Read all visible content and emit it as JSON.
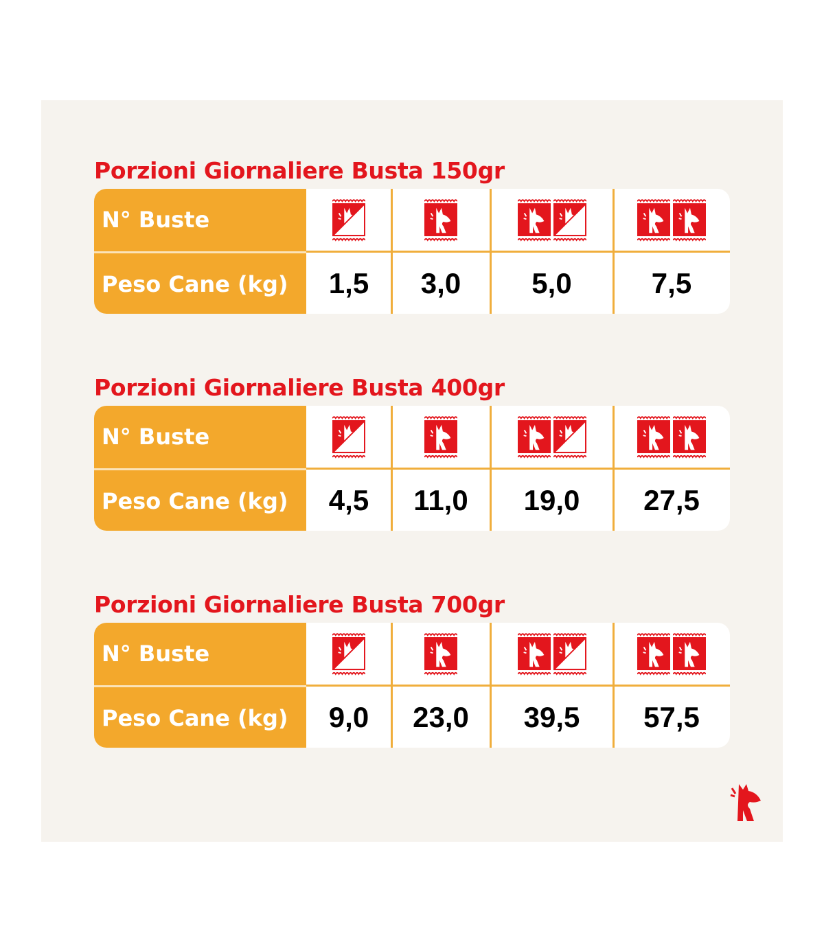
{
  "colors": {
    "title": "#e3161d",
    "label_bg": "#f3a82c",
    "divider": "#f0ae3c",
    "background": "#f6f3ee",
    "sachet": "#e3161d"
  },
  "row_labels": {
    "sachets": "N° Buste",
    "weight": "Peso Cane (kg)"
  },
  "sachet_icon": "dog-sachet-icon",
  "tables": [
    {
      "title": "Porzioni Giornaliere Busta 150gr",
      "sachets": [
        0.5,
        1,
        1.5,
        2
      ],
      "weights": [
        "1,5",
        "3,0",
        "5,0",
        "7,5"
      ]
    },
    {
      "title": "Porzioni Giornaliere Busta 400gr",
      "sachets": [
        0.5,
        1,
        1.5,
        2
      ],
      "weights": [
        "4,5",
        "11,0",
        "19,0",
        "27,5"
      ]
    },
    {
      "title": "Porzioni Giornaliere Busta 700gr",
      "sachets": [
        0.5,
        1,
        1.5,
        2
      ],
      "weights": [
        "9,0",
        "23,0",
        "39,5",
        "57,5"
      ]
    }
  ],
  "logo": "dog-logo-icon"
}
